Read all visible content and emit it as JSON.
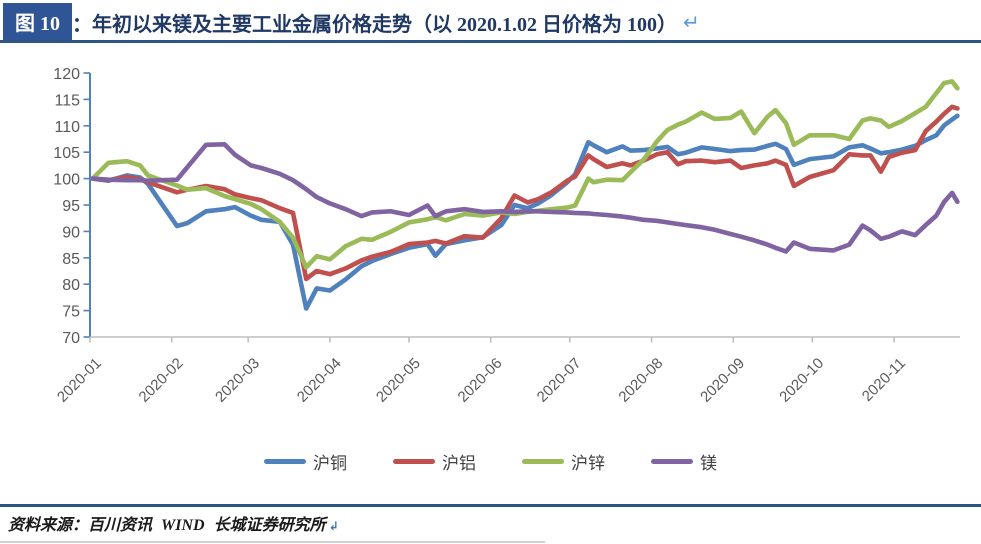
{
  "header": {
    "tag": "图 10",
    "colon": "：",
    "title": "年初以来镁及主要工业金属价格走势（以 2020.1.02 日价格为 100）",
    "return_mark": "↵"
  },
  "source": {
    "text": "资料来源：百川资讯 WIND 长城证券研究所",
    "return_mark": "↲"
  },
  "colors": {
    "header_navy": "#1F3864",
    "tag_box_blue": "#2F5597",
    "rule_navy": "#2E5586",
    "y_axis_blue": "#4F81BD",
    "x_axis_gray": "#BFBFBF",
    "tick_label_gray": "#595959"
  },
  "chart_data": {
    "type": "line",
    "title": "年初以来镁及主要工业金属价格走势",
    "base_note": "以 2020.1.02 日价格为 100",
    "ylim": [
      70,
      120
    ],
    "yticks": [
      70,
      75,
      80,
      85,
      90,
      95,
      100,
      105,
      110,
      115,
      120
    ],
    "xtick_labels": [
      "2020-01",
      "2020-02",
      "2020-03",
      "2020-04",
      "2020-05",
      "2020-06",
      "2020-07",
      "2020-08",
      "2020-09",
      "2020-10",
      "2020-11"
    ],
    "grid": false,
    "legend_position": "bottom",
    "x": [
      "01-02",
      "01-08",
      "01-15",
      "01-20",
      "01-23",
      "02-03",
      "02-07",
      "02-14",
      "02-21",
      "02-25",
      "03-02",
      "03-06",
      "03-13",
      "03-18",
      "03-23",
      "03-27",
      "04-01",
      "04-07",
      "04-13",
      "04-17",
      "04-24",
      "05-01",
      "05-08",
      "05-11",
      "05-15",
      "05-22",
      "05-29",
      "06-05",
      "06-10",
      "06-15",
      "06-19",
      "06-24",
      "06-30",
      "07-03",
      "07-08",
      "07-10",
      "07-15",
      "07-21",
      "07-24",
      "07-29",
      "08-03",
      "08-07",
      "08-11",
      "08-14",
      "08-20",
      "08-25",
      "08-31",
      "09-04",
      "09-09",
      "09-14",
      "09-17",
      "09-21",
      "09-24",
      "09-30",
      "10-09",
      "10-15",
      "10-20",
      "10-23",
      "10-27",
      "10-30",
      "11-04",
      "11-09",
      "11-13",
      "11-17",
      "11-20",
      "11-23",
      "11-25"
    ],
    "series": [
      {
        "key": "cu",
        "name": "沪铜",
        "color": "#4F81BD",
        "values": [
          100,
          99.6,
          100.6,
          100.2,
          99.0,
          91.0,
          91.6,
          93.8,
          94.2,
          94.6,
          93.0,
          92.2,
          91.8,
          87.5,
          75.4,
          79.2,
          78.8,
          80.9,
          83.4,
          84.4,
          85.7,
          86.9,
          87.6,
          85.4,
          87.6,
          88.3,
          88.9,
          91.2,
          95.0,
          94.4,
          95.3,
          96.9,
          99.3,
          100.8,
          106.9,
          106.3,
          105.0,
          106.1,
          105.3,
          105.4,
          105.7,
          106.0,
          104.6,
          104.9,
          105.9,
          105.6,
          105.2,
          105.4,
          105.5,
          106.2,
          106.6,
          105.6,
          102.6,
          103.7,
          104.2,
          105.9,
          106.3,
          105.7,
          104.8,
          105.0,
          105.5,
          106.2,
          107.3,
          108.2,
          110.1,
          111.2,
          111.9
        ]
      },
      {
        "key": "al",
        "name": "沪铝",
        "color": "#C0504D",
        "values": [
          100,
          99.7,
          100.3,
          99.9,
          99.3,
          97.4,
          97.9,
          98.6,
          98.0,
          97.0,
          96.3,
          95.9,
          94.4,
          93.5,
          81.0,
          82.5,
          81.9,
          83.0,
          84.5,
          85.2,
          86.1,
          87.6,
          87.9,
          88.2,
          87.7,
          89.1,
          88.8,
          92.5,
          96.8,
          95.5,
          96.1,
          97.4,
          99.6,
          100.4,
          104.4,
          103.7,
          102.2,
          102.9,
          102.5,
          103.4,
          104.6,
          105.0,
          102.7,
          103.3,
          103.4,
          103.1,
          103.4,
          102.0,
          102.5,
          102.9,
          103.4,
          102.6,
          98.6,
          100.3,
          101.6,
          104.6,
          104.4,
          104.4,
          101.3,
          104.1,
          104.9,
          105.4,
          109.0,
          110.8,
          112.3,
          113.6,
          113.3
        ]
      },
      {
        "key": "zn",
        "name": "沪锌",
        "color": "#9BBB59",
        "values": [
          100,
          103.0,
          103.3,
          102.5,
          100.6,
          98.7,
          97.9,
          98.2,
          96.7,
          96.1,
          95.2,
          94.2,
          91.8,
          88.8,
          83.2,
          85.3,
          84.7,
          87.2,
          88.6,
          88.4,
          89.9,
          91.7,
          92.3,
          92.7,
          92.1,
          93.3,
          93.0,
          93.6,
          93.3,
          93.7,
          93.9,
          94.2,
          94.5,
          94.9,
          100.0,
          99.3,
          99.8,
          99.7,
          101.2,
          103.6,
          107.0,
          109.2,
          110.2,
          110.8,
          112.5,
          111.3,
          111.5,
          112.7,
          108.6,
          111.7,
          113.0,
          110.5,
          106.4,
          108.2,
          108.2,
          107.5,
          111.0,
          111.4,
          111.0,
          109.8,
          110.9,
          112.4,
          113.6,
          116.2,
          118.1,
          118.4,
          117.1
        ]
      },
      {
        "key": "mg",
        "name": "镁",
        "color": "#8064A2",
        "values": [
          100,
          99.8,
          99.7,
          99.7,
          99.6,
          99.8,
          102.2,
          106.4,
          106.5,
          104.5,
          102.5,
          102.0,
          100.9,
          99.7,
          98.0,
          96.5,
          95.3,
          94.2,
          92.9,
          93.6,
          93.8,
          93.1,
          94.9,
          92.9,
          93.8,
          94.2,
          93.7,
          93.8,
          93.7,
          93.8,
          93.8,
          93.7,
          93.6,
          93.5,
          93.4,
          93.3,
          93.1,
          92.8,
          92.6,
          92.2,
          92.0,
          91.7,
          91.4,
          91.2,
          90.8,
          90.3,
          89.5,
          89.0,
          88.3,
          87.5,
          86.9,
          86.2,
          87.9,
          86.7,
          86.4,
          87.5,
          91.1,
          90.2,
          88.6,
          89.0,
          90.0,
          89.3,
          91.2,
          93.0,
          95.6,
          97.3,
          95.6
        ]
      }
    ]
  }
}
